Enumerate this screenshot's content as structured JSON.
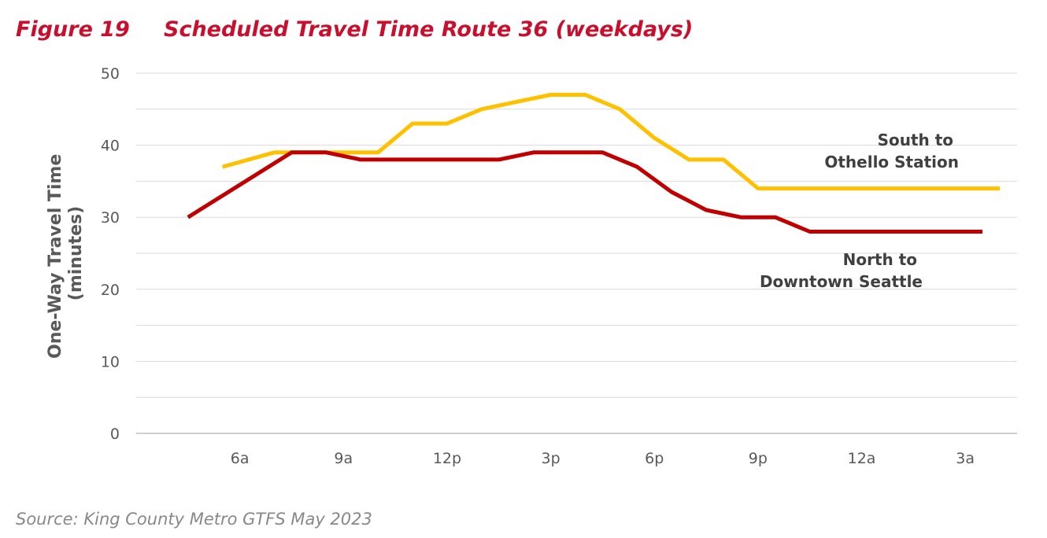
{
  "figure": {
    "number": "Figure 19",
    "title": "Scheduled Travel Time Route 36 (weekdays)"
  },
  "source": "Source: King County Metro GTFS May 2023",
  "colors": {
    "title": "#c8102e",
    "south": "#ffc000",
    "north": "#c00000",
    "grid": "#d9d9d9",
    "text": "#595959"
  },
  "chart_data": {
    "type": "line",
    "ylabel": [
      "One-Way Travel Time",
      "(minutes)"
    ],
    "xlabel": "",
    "ylim": [
      0,
      50
    ],
    "y_ticks": [
      0,
      10,
      20,
      30,
      40,
      50
    ],
    "grid": true,
    "xlim_hours": [
      3,
      28.5
    ],
    "x_ticks": [
      {
        "hour": 6,
        "label": "6a"
      },
      {
        "hour": 9,
        "label": "9a"
      },
      {
        "hour": 12,
        "label": "12p"
      },
      {
        "hour": 15,
        "label": "3p"
      },
      {
        "hour": 18,
        "label": "6p"
      },
      {
        "hour": 21,
        "label": "9p"
      },
      {
        "hour": 24,
        "label": "12a"
      },
      {
        "hour": 27,
        "label": "3a"
      }
    ],
    "series": [
      {
        "name": [
          "South to",
          "Othello Station"
        ],
        "color": "#ffc000",
        "points": [
          [
            5.5,
            37
          ],
          [
            7,
            39
          ],
          [
            8,
            39
          ],
          [
            9,
            39
          ],
          [
            10,
            39
          ],
          [
            11,
            43
          ],
          [
            12,
            43
          ],
          [
            13,
            45
          ],
          [
            14,
            46
          ],
          [
            15,
            47
          ],
          [
            16,
            47
          ],
          [
            17,
            45
          ],
          [
            18,
            41
          ],
          [
            19,
            38
          ],
          [
            20,
            38
          ],
          [
            21,
            34
          ],
          [
            22,
            34
          ],
          [
            23,
            34
          ],
          [
            24,
            34
          ],
          [
            25,
            34
          ],
          [
            26,
            34
          ],
          [
            27,
            34
          ],
          [
            28,
            34
          ]
        ]
      },
      {
        "name": [
          "North to",
          "Downtown Seattle"
        ],
        "color": "#c00000",
        "points": [
          [
            4.5,
            30
          ],
          [
            5.5,
            33
          ],
          [
            6.5,
            36
          ],
          [
            7.5,
            39
          ],
          [
            8.5,
            39
          ],
          [
            9.5,
            38
          ],
          [
            10.5,
            38
          ],
          [
            11.5,
            38
          ],
          [
            12.5,
            38
          ],
          [
            13.5,
            38
          ],
          [
            14.5,
            39
          ],
          [
            15.5,
            39
          ],
          [
            16.5,
            39
          ],
          [
            17.5,
            37
          ],
          [
            18.5,
            33.5
          ],
          [
            19.5,
            31
          ],
          [
            20.5,
            30
          ],
          [
            21.5,
            30
          ],
          [
            22.5,
            28
          ],
          [
            23.5,
            28
          ],
          [
            24.5,
            28
          ],
          [
            25.5,
            28
          ],
          [
            26.5,
            28
          ],
          [
            27.5,
            28
          ]
        ]
      }
    ]
  }
}
